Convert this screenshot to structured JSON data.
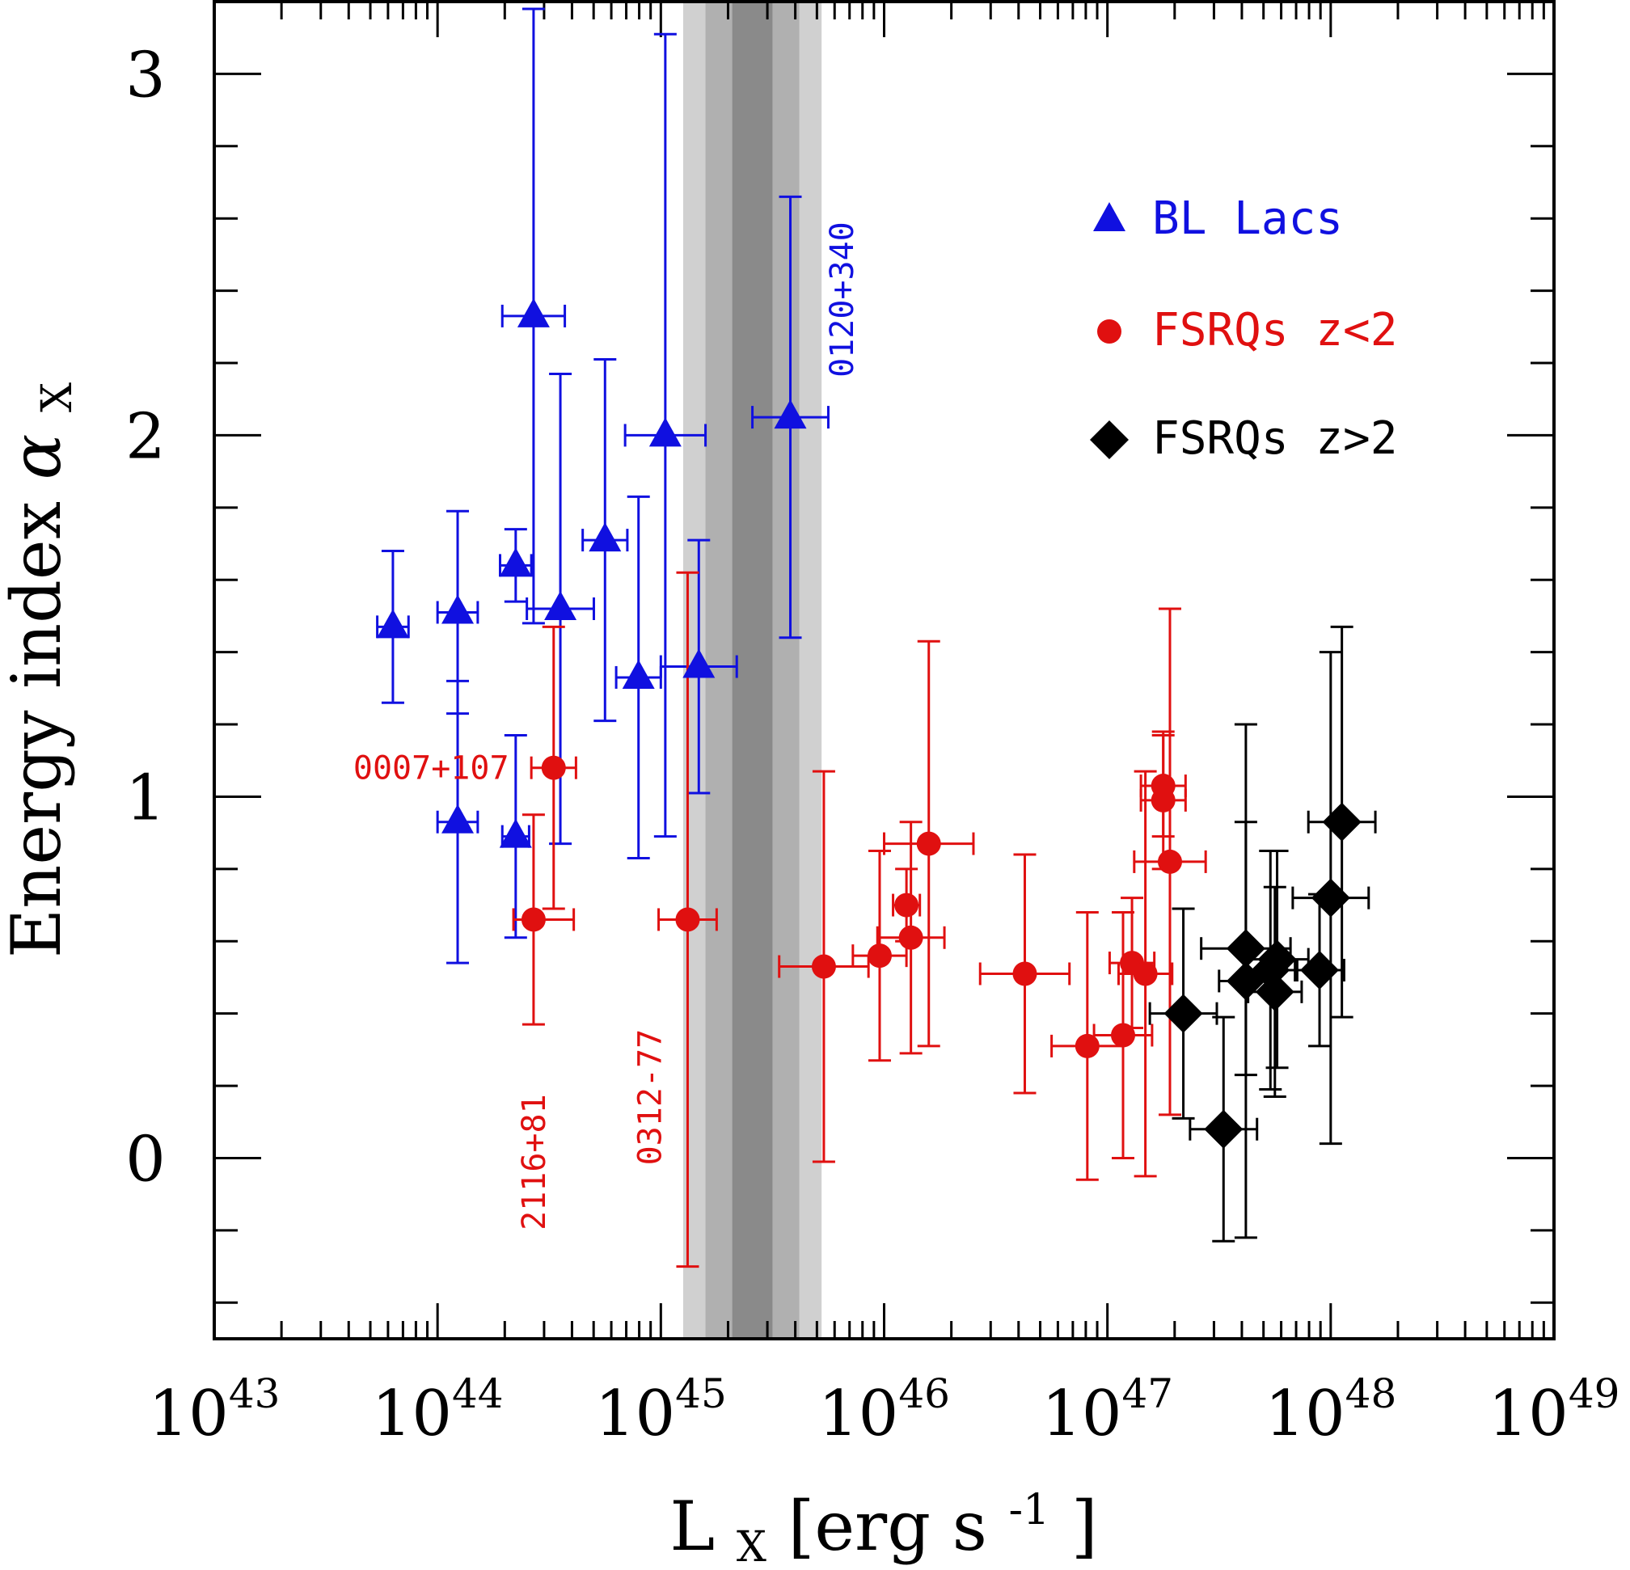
{
  "chart_data": {
    "type": "scatter",
    "xscale": "log",
    "xlim": [
      1e+43,
      1e+49
    ],
    "ylim": [
      -0.5,
      3.2
    ],
    "ylabel": "Energy index",
    "ylabel_symbol": "α",
    "ylabel_sub": "X",
    "xlabel_main": "L",
    "xlabel_sub": "X",
    "xlabel_rest": " [erg s",
    "xlabel_exp": "-1",
    "xlabel_close": "]",
    "xticks": [
      {
        "base": "10",
        "exp": "43",
        "value": 43
      },
      {
        "base": "10",
        "exp": "44",
        "value": 44
      },
      {
        "base": "10",
        "exp": "45",
        "value": 45
      },
      {
        "base": "10",
        "exp": "46",
        "value": 46
      },
      {
        "base": "10",
        "exp": "47",
        "value": 47
      },
      {
        "base": "10",
        "exp": "48",
        "value": 48
      },
      {
        "base": "10",
        "exp": "49",
        "value": 49
      }
    ],
    "yticks": [
      {
        "label": "0",
        "value": 0
      },
      {
        "label": "1",
        "value": 1
      },
      {
        "label": "2",
        "value": 2
      },
      {
        "label": "3",
        "value": 3
      }
    ],
    "bands": [
      {
        "logx": [
          45.1,
          45.72
        ],
        "color": "#d0d0d0"
      },
      {
        "logx": [
          45.2,
          45.62
        ],
        "color": "#b0b0b0"
      },
      {
        "logx": [
          45.32,
          45.5
        ],
        "color": "#8a8a8a"
      }
    ],
    "series": [
      {
        "name": "BL Lacs",
        "marker": "triangle",
        "color": "#1010e0",
        "points": [
          {
            "logx": 43.8,
            "y": 1.47,
            "xerr": [
              0.07,
              0.07
            ],
            "yerr": [
              0.21,
              0.21
            ]
          },
          {
            "logx": 44.09,
            "y": 1.51,
            "xerr": [
              0.09,
              0.09
            ],
            "yerr": [
              0.28,
              0.28
            ]
          },
          {
            "logx": 44.09,
            "y": 0.93,
            "xerr": [
              0.09,
              0.09
            ],
            "yerr": [
              0.39,
              0.39
            ]
          },
          {
            "logx": 44.35,
            "y": 1.64,
            "xerr": [
              0.07,
              0.07
            ],
            "yerr": [
              0.1,
              0.1
            ]
          },
          {
            "logx": 44.35,
            "y": 0.89,
            "xerr": [
              0.06,
              0.06
            ],
            "yerr": [
              0.28,
              0.28
            ]
          },
          {
            "logx": 44.43,
            "y": 2.33,
            "xerr": [
              0.14,
              0.14
            ],
            "yerr": [
              0.85,
              0.85
            ]
          },
          {
            "logx": 44.55,
            "y": 1.52,
            "xerr": [
              0.15,
              0.15
            ],
            "yerr": [
              0.65,
              0.65
            ]
          },
          {
            "logx": 44.75,
            "y": 1.71,
            "xerr": [
              0.1,
              0.1
            ],
            "yerr": [
              0.5,
              0.5
            ]
          },
          {
            "logx": 44.9,
            "y": 1.33,
            "xerr": [
              0.1,
              0.1
            ],
            "yerr": [
              0.5,
              0.5
            ]
          },
          {
            "logx": 45.02,
            "y": 2.0,
            "xerr": [
              0.18,
              0.18
            ],
            "yerr": [
              1.11,
              1.11
            ]
          },
          {
            "logx": 45.17,
            "y": 1.36,
            "xerr": [
              0.17,
              0.17
            ],
            "yerr": [
              0.35,
              0.35
            ]
          },
          {
            "logx": 45.58,
            "y": 2.05,
            "xerr": [
              0.17,
              0.17
            ],
            "yerr": [
              0.61,
              0.61
            ]
          }
        ]
      },
      {
        "name": "FSRQs z<2",
        "marker": "circle",
        "color": "#e01010",
        "points": [
          {
            "logx": 44.43,
            "y": 0.66,
            "xerr": [
              0.09,
              0.18
            ],
            "yerr": [
              0.29,
              0.29
            ]
          },
          {
            "logx": 44.52,
            "y": 1.08,
            "xerr": [
              0.1,
              0.1
            ],
            "yerr": [
              0.39,
              0.39
            ]
          },
          {
            "logx": 45.12,
            "y": 0.66,
            "xerr": [
              0.13,
              0.13
            ],
            "yerr": [
              0.96,
              0.96
            ]
          },
          {
            "logx": 45.73,
            "y": 0.53,
            "xerr": [
              0.2,
              0.2
            ],
            "yerr": [
              0.54,
              0.54
            ]
          },
          {
            "logx": 45.98,
            "y": 0.56,
            "xerr": [
              0.12,
              0.12
            ],
            "yerr": [
              0.29,
              0.29
            ]
          },
          {
            "logx": 46.1,
            "y": 0.7,
            "xerr": [
              0.06,
              0.06
            ],
            "yerr": [
              0.1,
              0.1
            ]
          },
          {
            "logx": 46.12,
            "y": 0.61,
            "xerr": [
              0.15,
              0.15
            ],
            "yerr": [
              0.32,
              0.32
            ]
          },
          {
            "logx": 46.2,
            "y": 0.87,
            "xerr": [
              0.2,
              0.2
            ],
            "yerr": [
              0.56,
              0.56
            ]
          },
          {
            "logx": 46.63,
            "y": 0.51,
            "xerr": [
              0.2,
              0.2
            ],
            "yerr": [
              0.33,
              0.33
            ]
          },
          {
            "logx": 46.91,
            "y": 0.31,
            "xerr": [
              0.16,
              0.16
            ],
            "yerr": [
              0.37,
              0.37
            ]
          },
          {
            "logx": 47.07,
            "y": 0.34,
            "xerr": [
              0.13,
              0.13
            ],
            "yerr": [
              0.34,
              0.34
            ]
          },
          {
            "logx": 47.11,
            "y": 0.54,
            "xerr": [
              0.1,
              0.1
            ],
            "yerr": [
              0.18,
              0.18
            ]
          },
          {
            "logx": 47.17,
            "y": 0.51,
            "xerr": [
              0.12,
              0.12
            ],
            "yerr": [
              0.56,
              0.56
            ]
          },
          {
            "logx": 47.25,
            "y": 1.03,
            "xerr": [
              0.1,
              0.1
            ],
            "yerr": [
              0.14,
              0.14
            ]
          },
          {
            "logx": 47.25,
            "y": 0.99,
            "xerr": [
              0.1,
              0.1
            ],
            "yerr": [
              0.19,
              0.19
            ]
          },
          {
            "logx": 47.28,
            "y": 0.82,
            "xerr": [
              0.16,
              0.16
            ],
            "yerr": [
              0.7,
              0.7
            ]
          }
        ]
      },
      {
        "name": "FSRQs z>2",
        "marker": "diamond",
        "color": "#000000",
        "points": [
          {
            "logx": 47.34,
            "y": 0.4,
            "xerr": [
              0.15,
              0.15
            ],
            "yerr": [
              0.29,
              0.29
            ]
          },
          {
            "logx": 47.52,
            "y": 0.08,
            "xerr": [
              0.15,
              0.15
            ],
            "yerr": [
              0.31,
              0.31
            ]
          },
          {
            "logx": 47.62,
            "y": 0.58,
            "xerr": [
              0.2,
              0.2
            ],
            "yerr": [
              0.35,
              0.35
            ]
          },
          {
            "logx": 47.62,
            "y": 0.49,
            "xerr": [
              0.12,
              0.12
            ],
            "yerr": [
              0.71,
              0.71
            ]
          },
          {
            "logx": 47.73,
            "y": 0.52,
            "xerr": [
              0.12,
              0.12
            ],
            "yerr": [
              0.33,
              0.33
            ]
          },
          {
            "logx": 47.75,
            "y": 0.46,
            "xerr": [
              0.12,
              0.12
            ],
            "yerr": [
              0.29,
              0.29
            ]
          },
          {
            "logx": 47.76,
            "y": 0.55,
            "xerr": [
              0.14,
              0.14
            ],
            "yerr": [
              0.3,
              0.3
            ]
          },
          {
            "logx": 47.95,
            "y": 0.52,
            "xerr": [
              0.11,
              0.11
            ],
            "yerr": [
              0.21,
              0.21
            ]
          },
          {
            "logx": 48.0,
            "y": 0.72,
            "xerr": [
              0.17,
              0.17
            ],
            "yerr": [
              0.68,
              0.68
            ]
          },
          {
            "logx": 48.05,
            "y": 0.93,
            "xerr": [
              0.15,
              0.15
            ],
            "yerr": [
              0.54,
              0.54
            ]
          }
        ]
      }
    ],
    "annotations": [
      {
        "text": "0007+107",
        "color": "#e01010",
        "logx": 44.32,
        "y": 1.08,
        "rotate": false,
        "anchor": "end"
      },
      {
        "text": "2116+81",
        "color": "#e01010",
        "logx": 44.43,
        "y": -0.2,
        "rotate": true,
        "anchor": "start"
      },
      {
        "text": "0312-77",
        "color": "#e01010",
        "logx": 44.95,
        "y": -0.02,
        "rotate": true,
        "anchor": "start"
      },
      {
        "text": "0120+340",
        "color": "#1010e0",
        "logx": 45.81,
        "y": 2.16,
        "rotate": true,
        "anchor": "start"
      }
    ],
    "legend": {
      "position": "top-right"
    },
    "grid": false
  }
}
